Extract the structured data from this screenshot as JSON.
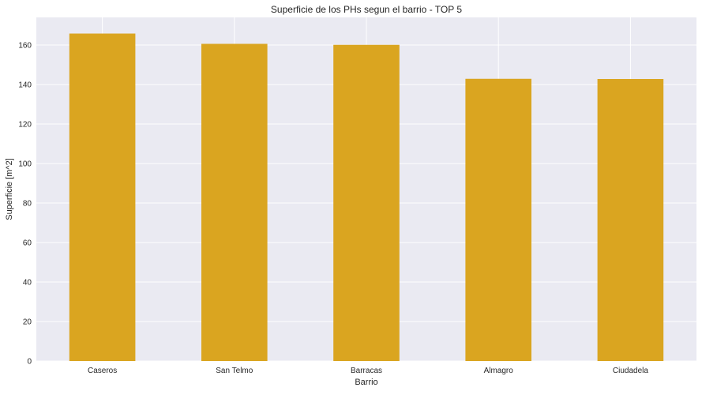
{
  "chart_data": {
    "type": "bar",
    "title": "Superficie de los PHs segun el barrio - TOP 5",
    "xlabel": "Barrio",
    "ylabel": "Superficie [m^2]",
    "categories": [
      "Caseros",
      "San Telmo",
      "Barracas",
      "Almagro",
      "Ciudadela"
    ],
    "values": [
      165.8,
      160.6,
      160.1,
      142.9,
      142.8
    ],
    "ylim": [
      0,
      174
    ],
    "yticks": [
      0,
      20,
      40,
      60,
      80,
      100,
      120,
      140,
      160
    ],
    "grid": true,
    "legend": "none",
    "colors": {
      "bar": "#daa520",
      "plot_background": "#eaeaf2",
      "grid": "#ffffff"
    }
  }
}
